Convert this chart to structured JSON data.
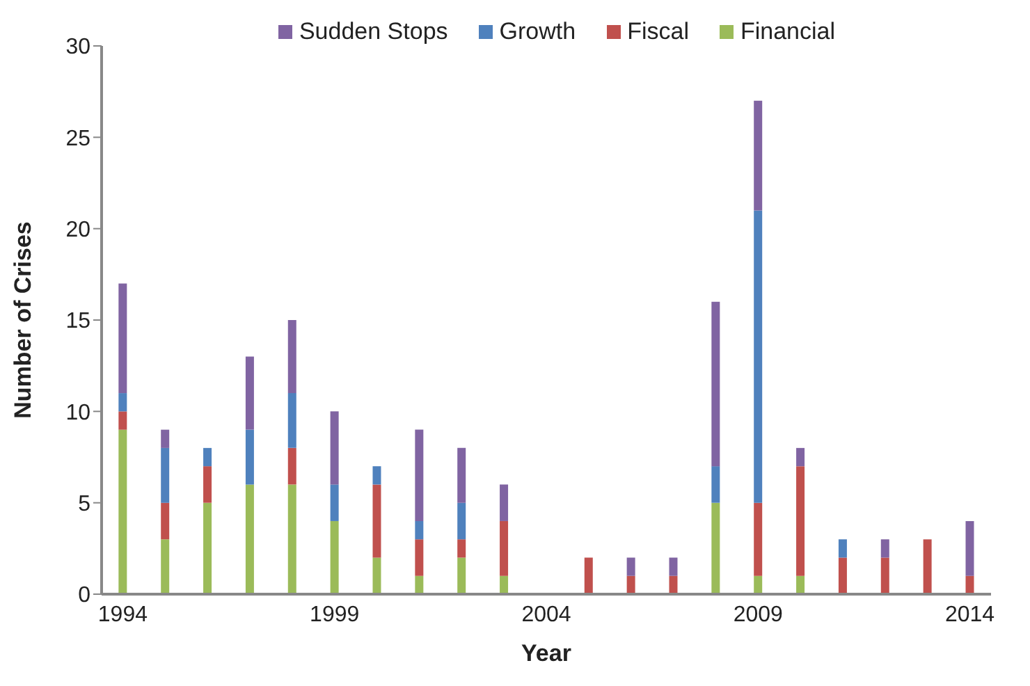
{
  "chart_data": {
    "type": "bar",
    "stacked": true,
    "xlabel": "Year",
    "ylabel": "Number of Crises",
    "categories": [
      "1994",
      null,
      null,
      null,
      null,
      "1999",
      null,
      null,
      null,
      null,
      "2004",
      null,
      null,
      null,
      null,
      "2009",
      null,
      null,
      null,
      null,
      "2014"
    ],
    "series": [
      {
        "name": "Financial",
        "color": "#9bbb59",
        "values": [
          9,
          3,
          5,
          6,
          6,
          4,
          2,
          1,
          2,
          1,
          0,
          0,
          0,
          0,
          5,
          1,
          1,
          0,
          0,
          0,
          0
        ]
      },
      {
        "name": "Fiscal",
        "color": "#c0504d",
        "values": [
          1,
          2,
          2,
          0,
          2,
          0,
          4,
          2,
          1,
          3,
          0,
          2,
          1,
          1,
          0,
          4,
          6,
          2,
          2,
          3,
          1
        ]
      },
      {
        "name": "Growth",
        "color": "#4f81bd",
        "values": [
          1,
          3,
          1,
          3,
          3,
          2,
          1,
          1,
          2,
          0,
          0,
          0,
          0,
          0,
          2,
          16,
          0,
          1,
          0,
          0,
          0
        ]
      },
      {
        "name": "Sudden Stops",
        "color": "#8064a2",
        "values": [
          6,
          1,
          0,
          4,
          4,
          4,
          0,
          5,
          3,
          2,
          0,
          0,
          1,
          1,
          9,
          6,
          1,
          0,
          1,
          0,
          3
        ]
      }
    ],
    "ylim": [
      0,
      30
    ],
    "yticks": [
      0,
      5,
      10,
      15,
      20,
      25,
      30
    ],
    "grid": false,
    "legend": "top"
  }
}
